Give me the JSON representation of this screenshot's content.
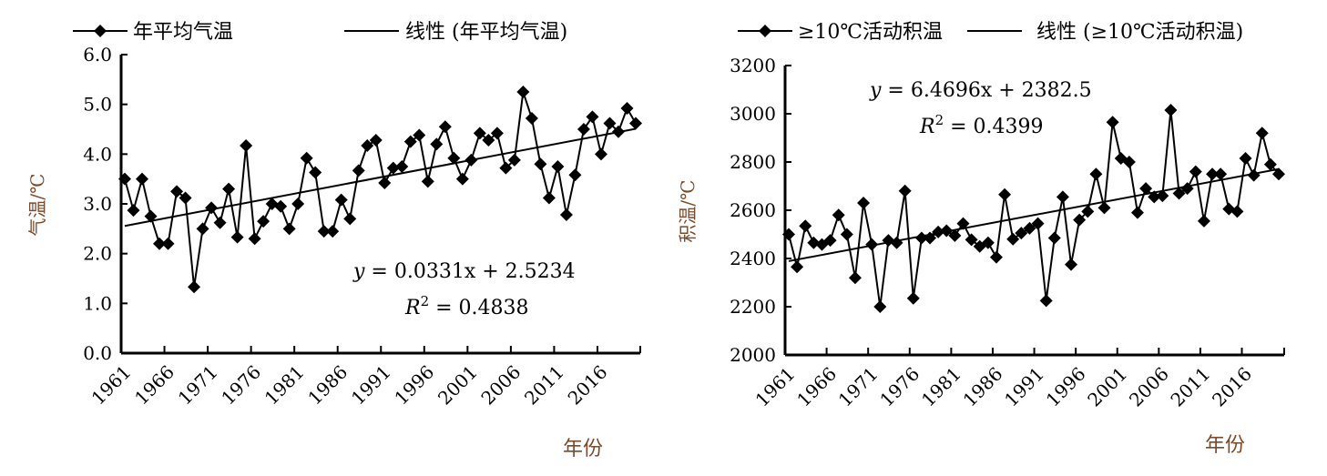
{
  "chart_data": [
    {
      "type": "line",
      "legend": {
        "series_label": "年平均气温",
        "trend_label": "线性 (年平均气温)",
        "placement": "top"
      },
      "xlabel": "年份",
      "ylabel": "气温/℃",
      "x_tick_labels": [
        "1961",
        "1966",
        "1971",
        "1976",
        "1981",
        "1986",
        "1991",
        "1996",
        "2001",
        "2006",
        "2011",
        "2016"
      ],
      "y_tick_labels": [
        "0.0",
        "1.0",
        "2.0",
        "3.0",
        "4.0",
        "5.0",
        "6.0"
      ],
      "ylim": [
        0,
        6
      ],
      "x_start": 1961,
      "values": [
        3.5,
        2.87,
        3.5,
        2.75,
        2.2,
        2.2,
        3.25,
        3.12,
        1.33,
        2.5,
        2.92,
        2.62,
        3.3,
        2.33,
        4.17,
        2.3,
        2.65,
        3.0,
        2.95,
        2.5,
        3.0,
        3.92,
        3.63,
        2.45,
        2.45,
        3.08,
        2.7,
        3.67,
        4.17,
        4.28,
        3.42,
        3.72,
        3.75,
        4.25,
        4.38,
        3.45,
        4.2,
        4.55,
        3.92,
        3.5,
        3.88,
        4.42,
        4.28,
        4.42,
        3.72,
        3.88,
        5.25,
        4.72,
        3.8,
        3.12,
        3.75,
        2.78,
        3.58,
        4.5,
        4.75,
        4.0,
        4.62,
        4.45,
        4.92,
        4.62
      ],
      "trend": {
        "slope": 0.0331,
        "intercept": 2.5234
      },
      "equation_text": {
        "y": "y",
        "eq": " = 0.0331x + 2.5234",
        "r": "R",
        "sup": "2",
        "r2": " = 0.4838"
      }
    },
    {
      "type": "line",
      "legend": {
        "series_label": "≥10℃活动积温",
        "trend_label": "线性 (≥10℃活动积温)",
        "placement": "top"
      },
      "xlabel": "年份",
      "ylabel": "积温/℃",
      "x_tick_labels": [
        "1961",
        "1966",
        "1971",
        "1976",
        "1981",
        "1986",
        "1991",
        "1996",
        "2001",
        "2006",
        "2011",
        "2016"
      ],
      "y_tick_labels": [
        "2000",
        "2200",
        "2400",
        "2600",
        "2800",
        "3000",
        "3200"
      ],
      "ylim": [
        2000,
        3200
      ],
      "x_start": 1961,
      "values": [
        2500,
        2365,
        2535,
        2465,
        2458,
        2475,
        2580,
        2500,
        2320,
        2630,
        2458,
        2200,
        2475,
        2465,
        2680,
        2235,
        2485,
        2485,
        2510,
        2515,
        2495,
        2545,
        2478,
        2450,
        2465,
        2405,
        2665,
        2480,
        2505,
        2525,
        2545,
        2225,
        2485,
        2655,
        2375,
        2560,
        2595,
        2750,
        2610,
        2965,
        2815,
        2800,
        2590,
        2690,
        2655,
        2660,
        3015,
        2670,
        2690,
        2760,
        2555,
        2750,
        2750,
        2605,
        2595,
        2815,
        2745,
        2920,
        2790,
        2750
      ],
      "trend": {
        "slope": 6.4696,
        "intercept": 2382.5
      },
      "equation_text": {
        "y": "y",
        "eq": " = 6.4696x + 2382.5",
        "r": "R",
        "sup": "2",
        "r2": " = 0.4399"
      }
    }
  ]
}
